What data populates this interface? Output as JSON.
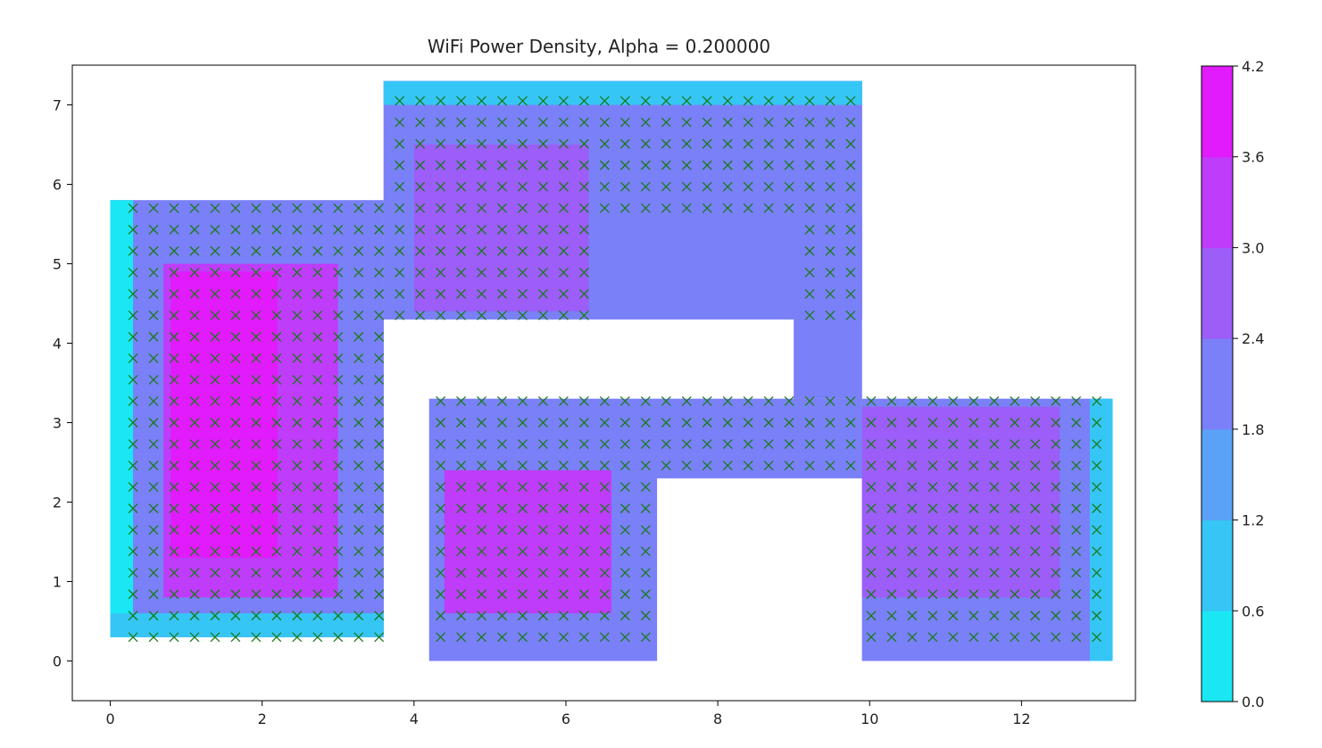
{
  "chart_data": {
    "type": "heatmap",
    "title": "WiFi Power Density, Alpha = 0.200000",
    "xlabel": "",
    "ylabel": "",
    "xlim": [
      -0.5,
      13.5
    ],
    "ylim": [
      -0.5,
      7.5
    ],
    "x_ticks": [
      0,
      2,
      4,
      6,
      8,
      10,
      12
    ],
    "y_ticks": [
      0,
      1,
      2,
      3,
      4,
      5,
      6,
      7
    ],
    "colorbar": {
      "ticks": [
        0.0,
        0.6,
        1.2,
        1.8,
        2.4,
        3.0,
        3.6,
        4.2
      ],
      "tick_labels": [
        "0.0",
        "0.6",
        "1.2",
        "1.8",
        "2.4",
        "3.0",
        "3.6",
        "4.2"
      ],
      "level_colors": [
        "#19e8f4",
        "#36c6f6",
        "#5aa2f7",
        "#7a80f8",
        "#9c5df8",
        "#bf3cfa",
        "#e11bfb"
      ]
    },
    "marker": {
      "symbol": "x",
      "color": "#1a7a1a"
    },
    "floor_plan_rooms": [
      {
        "name": "left room",
        "x": [
          0.0,
          3.6
        ],
        "y": [
          0.3,
          5.8
        ]
      },
      {
        "name": "upper corridor",
        "x": [
          3.6,
          9.9
        ],
        "y": [
          4.3,
          7.3
        ]
      },
      {
        "name": "middle room",
        "x": [
          4.2,
          7.2
        ],
        "y": [
          0.0,
          3.3
        ]
      },
      {
        "name": "lower corridor",
        "x": [
          7.2,
          9.9
        ],
        "y": [
          2.3,
          3.3
        ]
      },
      {
        "name": "right room",
        "x": [
          9.9,
          13.2
        ],
        "y": [
          0.0,
          3.3
        ]
      }
    ],
    "walls_cut_out": [
      {
        "x": [
          3.6,
          4.2
        ],
        "y": [
          0.3,
          4.3
        ]
      },
      {
        "x": [
          6.3,
          9.0
        ],
        "y": [
          3.3,
          5.6
        ]
      },
      {
        "x": [
          7.2,
          9.9
        ],
        "y": [
          0.0,
          2.3
        ]
      }
    ],
    "power_regions": [
      {
        "x": [
          0.0,
          3.6
        ],
        "y": [
          0.3,
          5.8
        ],
        "value": 2.2
      },
      {
        "x": [
          0.7,
          3.0
        ],
        "y": [
          0.8,
          5.0
        ],
        "value": 3.1
      },
      {
        "x": [
          0.8,
          2.2
        ],
        "y": [
          1.3,
          4.9
        ],
        "value": 3.7
      },
      {
        "x": [
          0.0,
          0.3
        ],
        "y": [
          0.3,
          5.8
        ],
        "value": 0.5
      },
      {
        "x": [
          0.0,
          3.6
        ],
        "y": [
          0.3,
          0.6
        ],
        "value": 0.6
      },
      {
        "x": [
          3.6,
          9.9
        ],
        "y": [
          4.3,
          7.3
        ],
        "value": 2.0
      },
      {
        "x": [
          4.0,
          6.3
        ],
        "y": [
          4.4,
          6.5
        ],
        "value": 2.8
      },
      {
        "x": [
          3.6,
          9.9
        ],
        "y": [
          7.0,
          7.3
        ],
        "value": 0.7
      },
      {
        "x": [
          9.0,
          9.9
        ],
        "y": [
          3.3,
          5.6
        ],
        "value": 1.9
      },
      {
        "x": [
          4.2,
          7.2
        ],
        "y": [
          0.0,
          3.3
        ],
        "value": 2.2
      },
      {
        "x": [
          4.4,
          6.6
        ],
        "y": [
          0.6,
          2.4
        ],
        "value": 3.0
      },
      {
        "x": [
          7.2,
          9.9
        ],
        "y": [
          2.3,
          3.3
        ],
        "value": 2.0
      },
      {
        "x": [
          9.9,
          13.2
        ],
        "y": [
          0.0,
          3.3
        ],
        "value": 1.9
      },
      {
        "x": [
          9.9,
          12.5
        ],
        "y": [
          0.8,
          3.2
        ],
        "value": 2.5
      },
      {
        "x": [
          12.9,
          13.2
        ],
        "y": [
          0.0,
          3.3
        ],
        "value": 1.0
      }
    ],
    "grid": false,
    "legend": "none"
  }
}
